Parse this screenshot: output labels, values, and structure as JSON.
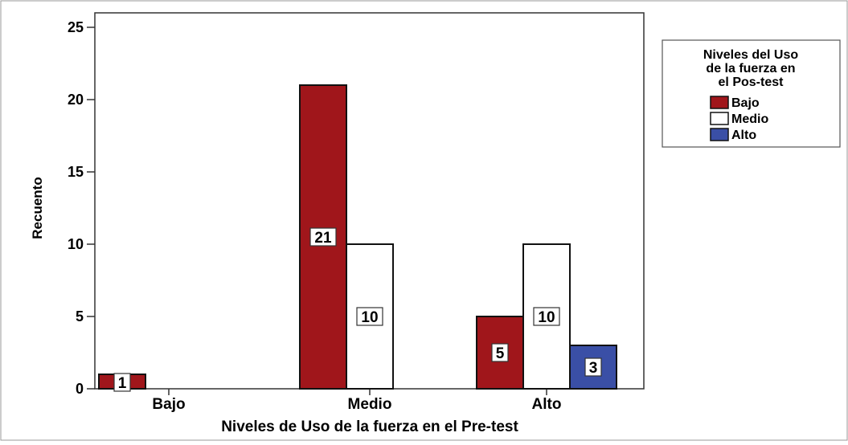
{
  "chart_data": {
    "type": "bar",
    "title": "",
    "xlabel": "Niveles de Uso de la fuerza en el Pre-test",
    "ylabel": "Recuento",
    "ylim": [
      0,
      26
    ],
    "yticks": [
      "0",
      "5",
      "10",
      "15",
      "20",
      "25"
    ],
    "categories": [
      "Bajo",
      "Medio",
      "Alto"
    ],
    "legend": {
      "title_lines": [
        "Niveles del Uso",
        "de la fuerza en",
        "el Pos-test"
      ],
      "placement": "right"
    },
    "series": [
      {
        "name": "Bajo",
        "color": "#a0161b",
        "values": [
          1,
          21,
          5
        ],
        "labels": [
          "1",
          "21",
          "5"
        ]
      },
      {
        "name": "Medio",
        "color": "#ffffff",
        "values": [
          null,
          10,
          10
        ],
        "labels": [
          "",
          "10",
          "10"
        ]
      },
      {
        "name": "Alto",
        "color": "#3a4fa6",
        "values": [
          null,
          null,
          3
        ],
        "labels": [
          "",
          "",
          "3"
        ]
      }
    ],
    "grid": false
  }
}
